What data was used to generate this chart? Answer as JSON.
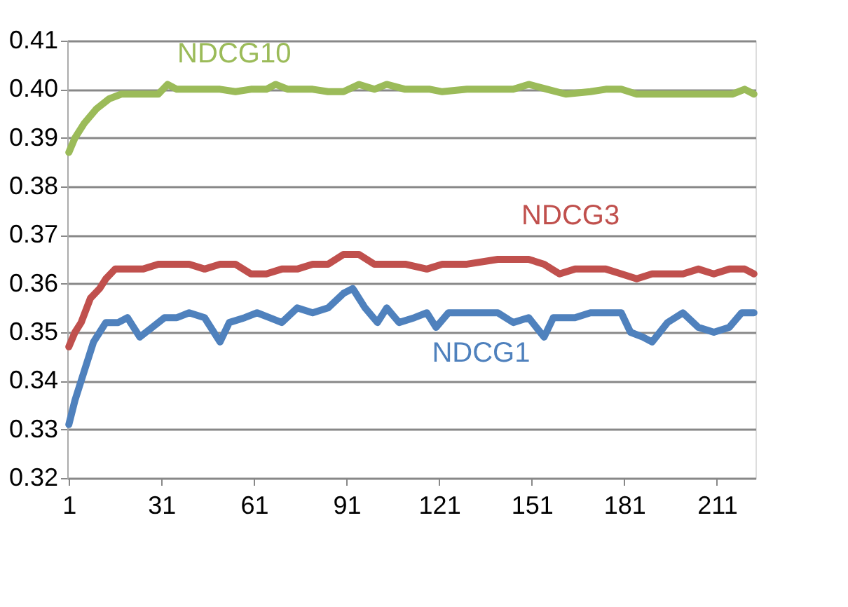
{
  "chart_data": {
    "type": "line",
    "xlim": [
      0.5,
      223.5
    ],
    "xticks": [
      1,
      31,
      61,
      91,
      121,
      151,
      181,
      211
    ],
    "ylim": [
      0.32,
      0.41
    ],
    "yticks": [
      0.32,
      0.33,
      0.34,
      0.35,
      0.36,
      0.37,
      0.38,
      0.39,
      {
        "value": 0.4,
        "label": "0.40"
      },
      0.41
    ],
    "grid": "y",
    "marker": "none",
    "line_style": "solid",
    "series": [
      {
        "name": "NDCG10",
        "color": "#9bbb59",
        "x": [
          1,
          3,
          6,
          10,
          14,
          18,
          25,
          30,
          33,
          36,
          50,
          55,
          60,
          65,
          68,
          72,
          80,
          85,
          90,
          95,
          100,
          104,
          110,
          118,
          122,
          130,
          138,
          145,
          150,
          156,
          162,
          170,
          175,
          180,
          185,
          190,
          200,
          210,
          216,
          220,
          223
        ],
        "values": [
          0.387,
          0.39,
          0.393,
          0.396,
          0.398,
          0.399,
          0.399,
          0.399,
          0.401,
          0.4,
          0.4,
          0.3995,
          0.4,
          0.4,
          0.401,
          0.4,
          0.4,
          0.3995,
          0.3995,
          0.401,
          0.4,
          0.401,
          0.4,
          0.4,
          0.3995,
          0.4,
          0.4,
          0.4,
          0.401,
          0.4,
          0.399,
          0.3995,
          0.4,
          0.4,
          0.399,
          0.399,
          0.399,
          0.399,
          0.399,
          0.4,
          0.399
        ]
      },
      {
        "name": "NDCG3",
        "color": "#c0504d",
        "x": [
          1,
          3,
          5,
          8,
          11,
          13,
          16,
          20,
          25,
          30,
          35,
          40,
          45,
          50,
          55,
          60,
          65,
          70,
          75,
          80,
          85,
          90,
          95,
          100,
          110,
          117,
          122,
          130,
          140,
          145,
          150,
          155,
          160,
          165,
          170,
          175,
          180,
          185,
          190,
          195,
          200,
          205,
          210,
          215,
          220,
          223
        ],
        "values": [
          0.347,
          0.35,
          0.352,
          0.357,
          0.359,
          0.361,
          0.363,
          0.363,
          0.363,
          0.364,
          0.364,
          0.364,
          0.363,
          0.364,
          0.364,
          0.362,
          0.362,
          0.363,
          0.363,
          0.364,
          0.364,
          0.366,
          0.366,
          0.364,
          0.364,
          0.363,
          0.364,
          0.364,
          0.365,
          0.365,
          0.365,
          0.364,
          0.362,
          0.363,
          0.363,
          0.363,
          0.362,
          0.361,
          0.362,
          0.362,
          0.362,
          0.363,
          0.362,
          0.363,
          0.363,
          0.362
        ]
      },
      {
        "name": "NDCG1",
        "color": "#4f81bd",
        "x": [
          1,
          3,
          5,
          7,
          9,
          11,
          13,
          17,
          20,
          24,
          28,
          32,
          36,
          40,
          45,
          50,
          53,
          58,
          62,
          66,
          70,
          75,
          80,
          85,
          90,
          93,
          97,
          101,
          104,
          108,
          113,
          117,
          120,
          124,
          130,
          135,
          140,
          145,
          150,
          155,
          158,
          165,
          170,
          175,
          180,
          183,
          187,
          190,
          195,
          200,
          205,
          210,
          215,
          219,
          223
        ],
        "values": [
          0.331,
          0.336,
          0.34,
          0.344,
          0.348,
          0.35,
          0.352,
          0.352,
          0.353,
          0.349,
          0.351,
          0.353,
          0.353,
          0.354,
          0.353,
          0.348,
          0.352,
          0.353,
          0.354,
          0.353,
          0.352,
          0.355,
          0.354,
          0.355,
          0.358,
          0.359,
          0.355,
          0.352,
          0.355,
          0.352,
          0.353,
          0.354,
          0.351,
          0.354,
          0.354,
          0.354,
          0.354,
          0.352,
          0.353,
          0.349,
          0.353,
          0.353,
          0.354,
          0.354,
          0.354,
          0.35,
          0.349,
          0.348,
          0.352,
          0.354,
          0.351,
          0.35,
          0.351,
          0.354,
          0.354
        ]
      }
    ]
  }
}
